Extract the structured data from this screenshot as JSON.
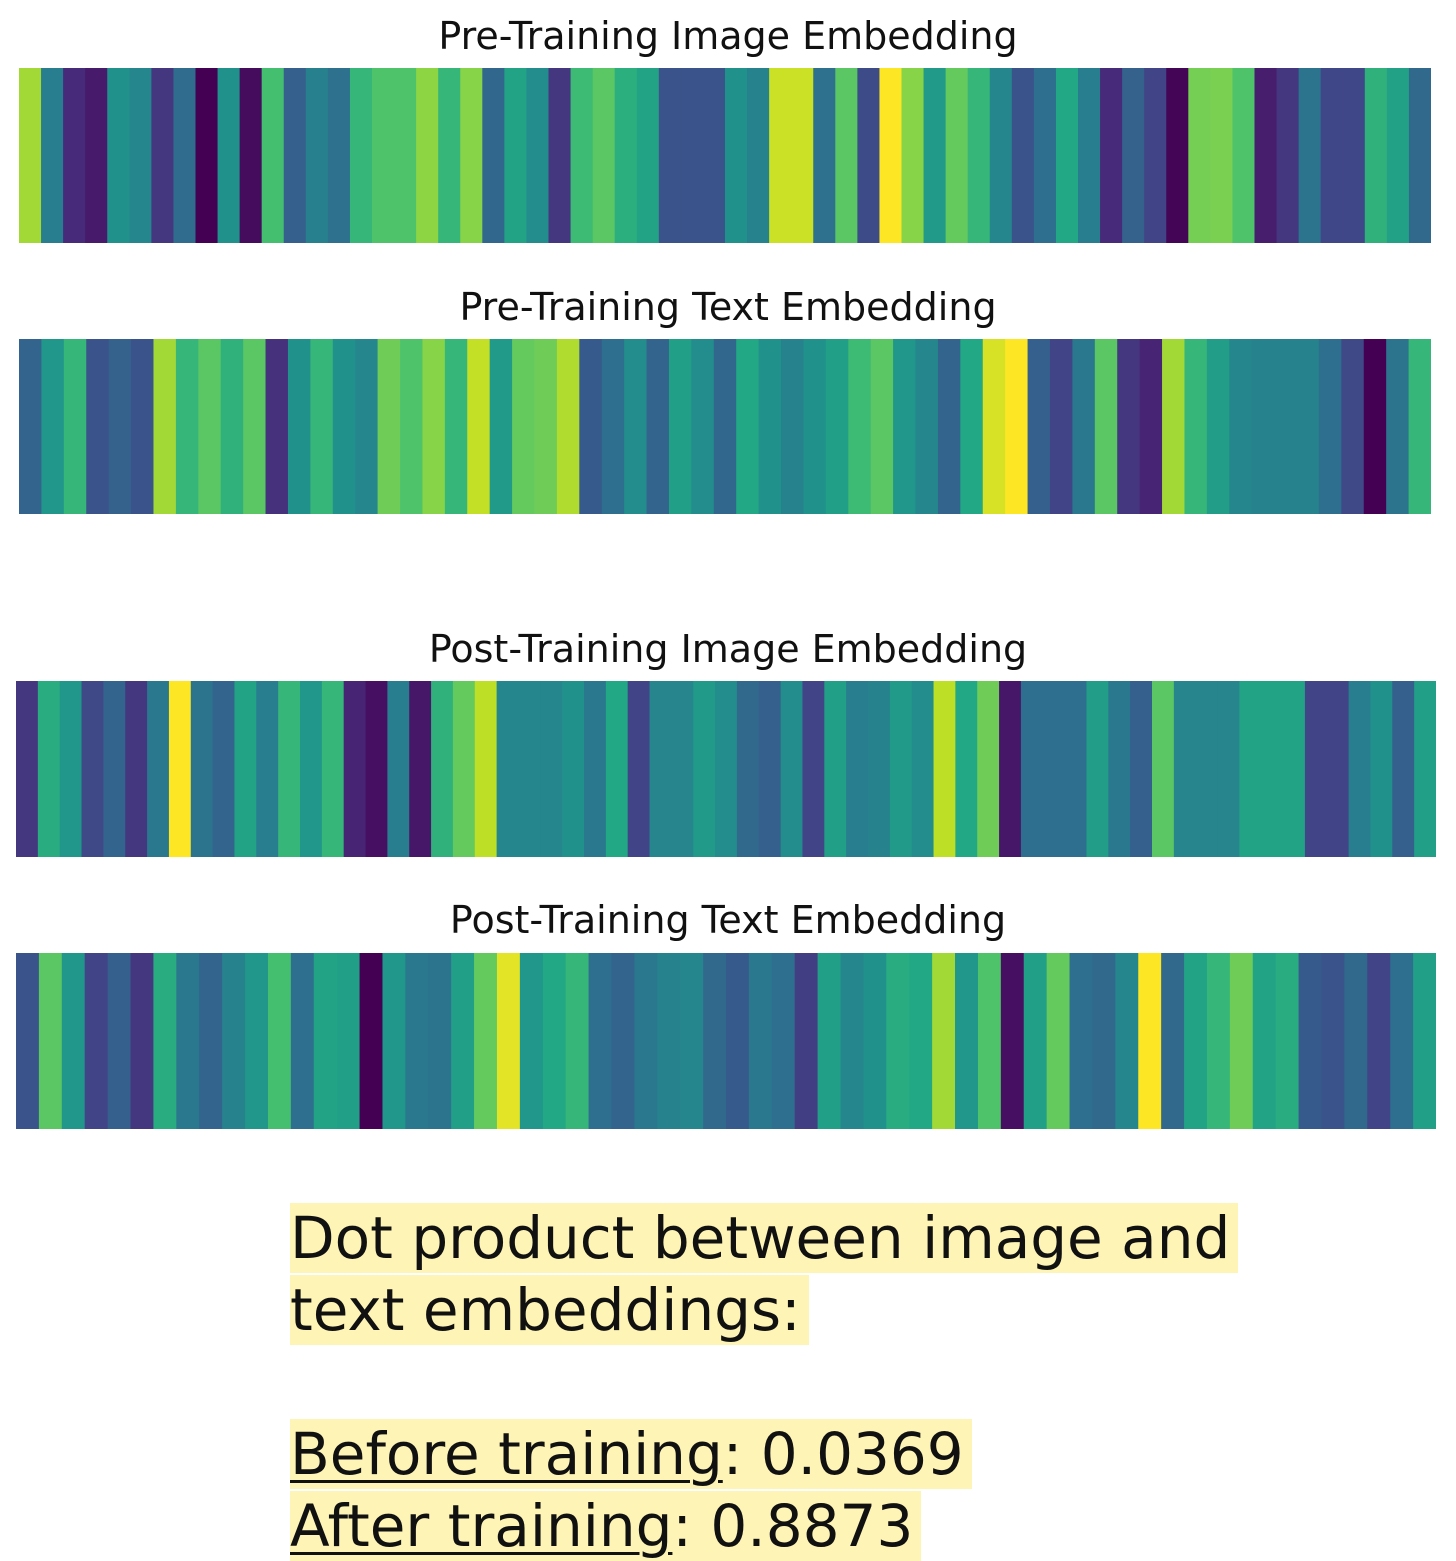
{
  "chart_data": [
    {
      "type": "heatmap",
      "title": "Pre-Training Image Embedding",
      "colormap": "viridis",
      "values": [
        0.86,
        0.42,
        0.12,
        0.07,
        0.5,
        0.46,
        0.16,
        0.35,
        0.0,
        0.5,
        0.03,
        0.7,
        0.3,
        0.43,
        0.37,
        0.66,
        0.72,
        0.72,
        0.83,
        0.66,
        0.82,
        0.33,
        0.58,
        0.48,
        0.16,
        0.68,
        0.74,
        0.63,
        0.58,
        0.26,
        0.26,
        0.26,
        0.5,
        0.44,
        0.92,
        0.92,
        0.37,
        0.74,
        0.23,
        1.0,
        0.82,
        0.54,
        0.76,
        0.66,
        0.46,
        0.26,
        0.36,
        0.6,
        0.42,
        0.12,
        0.31,
        0.2,
        0.01,
        0.79,
        0.8,
        0.72,
        0.08,
        0.16,
        0.38,
        0.21,
        0.21,
        0.64,
        0.57,
        0.34
      ]
    },
    {
      "type": "heatmap",
      "title": "Pre-Training Text Embedding",
      "colormap": "viridis",
      "values": [
        0.32,
        0.52,
        0.66,
        0.26,
        0.31,
        0.26,
        0.86,
        0.66,
        0.74,
        0.64,
        0.74,
        0.14,
        0.5,
        0.66,
        0.5,
        0.46,
        0.78,
        0.72,
        0.82,
        0.66,
        0.91,
        0.54,
        0.76,
        0.78,
        0.88,
        0.28,
        0.36,
        0.48,
        0.32,
        0.56,
        0.48,
        0.33,
        0.6,
        0.5,
        0.44,
        0.5,
        0.56,
        0.68,
        0.74,
        0.52,
        0.46,
        0.32,
        0.6,
        0.94,
        1.0,
        0.3,
        0.2,
        0.4,
        0.74,
        0.16,
        0.1,
        0.86,
        0.66,
        0.55,
        0.46,
        0.44,
        0.44,
        0.44,
        0.36,
        0.22,
        0.0,
        0.38,
        0.66
      ]
    },
    {
      "type": "heatmap",
      "title": "Post-Training Image Embedding",
      "colormap": "viridis",
      "values": [
        0.16,
        0.62,
        0.52,
        0.22,
        0.32,
        0.16,
        0.4,
        1.0,
        0.38,
        0.32,
        0.58,
        0.42,
        0.66,
        0.52,
        0.66,
        0.1,
        0.04,
        0.42,
        0.06,
        0.64,
        0.76,
        0.9,
        0.46,
        0.46,
        0.46,
        0.5,
        0.4,
        0.6,
        0.2,
        0.45,
        0.45,
        0.54,
        0.48,
        0.34,
        0.3,
        0.48,
        0.2,
        0.56,
        0.42,
        0.44,
        0.54,
        0.48,
        0.9,
        0.6,
        0.78,
        0.06,
        0.36,
        0.36,
        0.36,
        0.55,
        0.4,
        0.3,
        0.74,
        0.45,
        0.45,
        0.45,
        0.58,
        0.58,
        0.58,
        0.2,
        0.2,
        0.42,
        0.5,
        0.3,
        0.56
      ]
    },
    {
      "type": "heatmap",
      "title": "Post-Training Text Embedding",
      "colormap": "viridis",
      "values": [
        0.26,
        0.74,
        0.52,
        0.2,
        0.3,
        0.16,
        0.62,
        0.4,
        0.32,
        0.44,
        0.52,
        0.7,
        0.36,
        0.58,
        0.56,
        0.0,
        0.52,
        0.4,
        0.38,
        0.56,
        0.76,
        0.96,
        0.52,
        0.6,
        0.66,
        0.36,
        0.32,
        0.4,
        0.44,
        0.46,
        0.34,
        0.28,
        0.4,
        0.36,
        0.18,
        0.56,
        0.46,
        0.5,
        0.62,
        0.6,
        0.86,
        0.52,
        0.72,
        0.04,
        0.56,
        0.76,
        0.36,
        0.34,
        0.46,
        1.0,
        0.34,
        0.58,
        0.66,
        0.78,
        0.58,
        0.62,
        0.28,
        0.26,
        0.34,
        0.2,
        0.36,
        0.56
      ]
    }
  ],
  "note": {
    "heading_line1": "Dot product between image and",
    "heading_line2": "text embeddings:",
    "before_label": "Before training",
    "before_value": ": 0.0369",
    "after_label": "After training",
    "after_value": ": 0.8873"
  }
}
